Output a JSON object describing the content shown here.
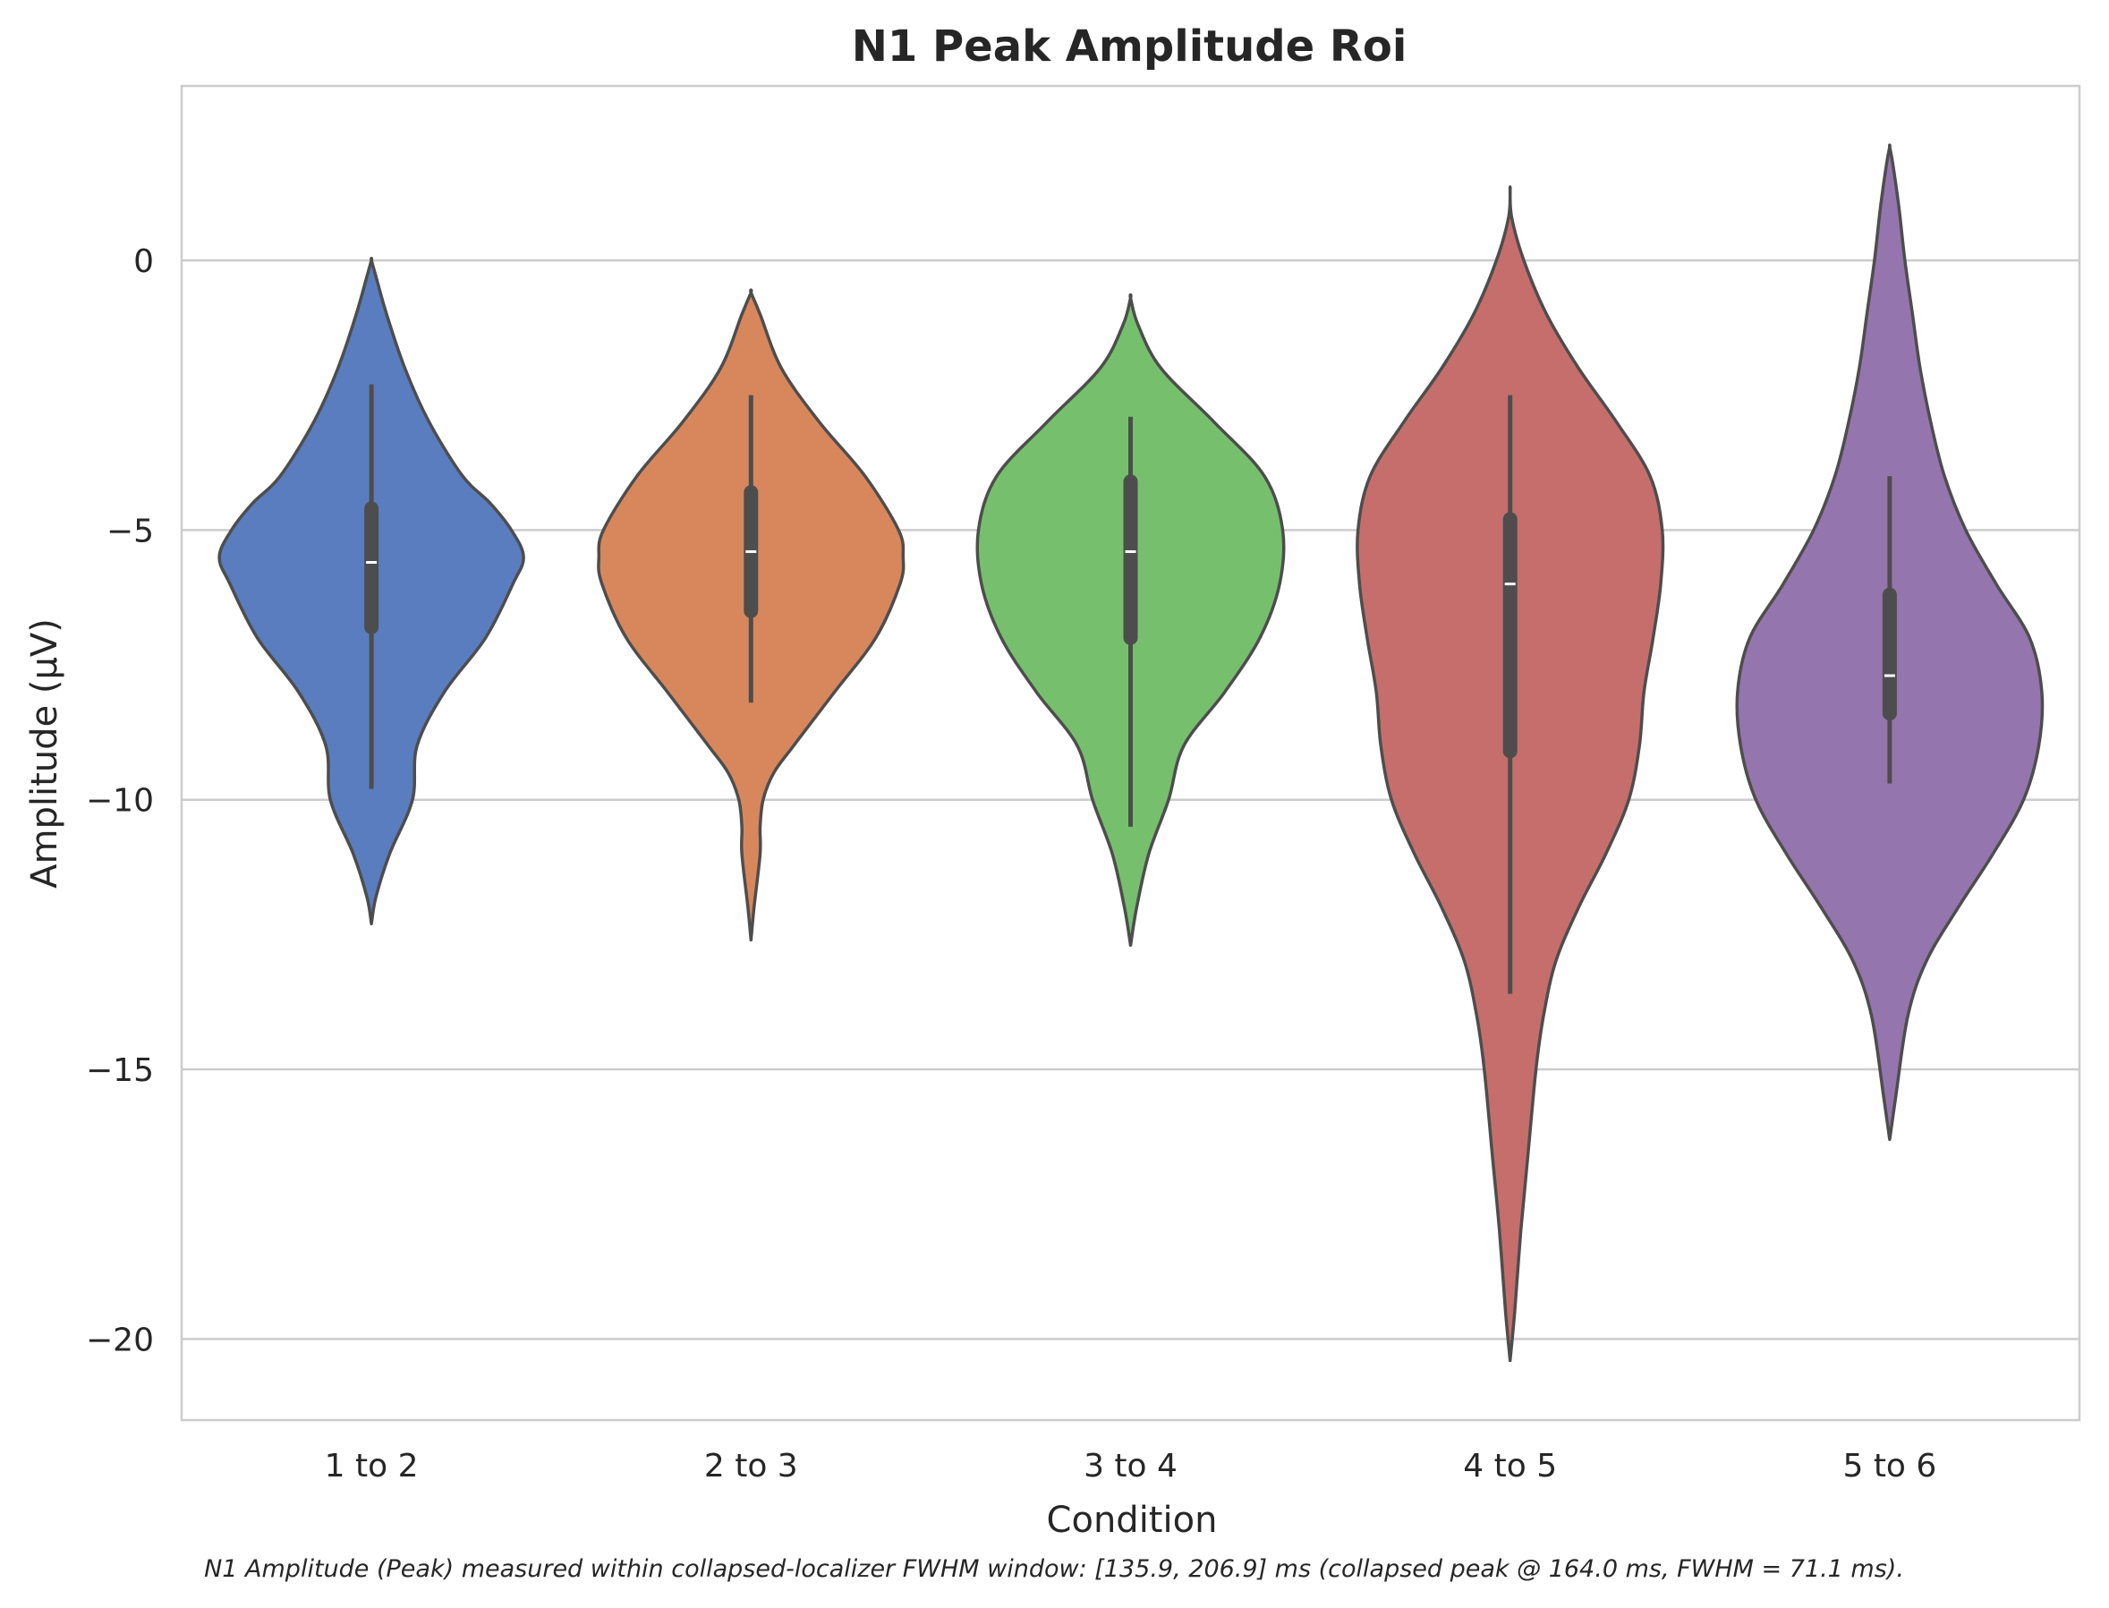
{
  "chart_data": {
    "type": "violin",
    "title": "N1 Peak Amplitude Roi",
    "xlabel": "Condition",
    "ylabel": "Amplitude (µV)",
    "caption": "N1 Amplitude (Peak) measured within collapsed-localizer FWHM window: [135.9, 206.9] ms (collapsed peak @ 164.0 ms, FWHM = 71.1 ms).",
    "ylim": [
      -21.5,
      3.2
    ],
    "yticks": [
      0,
      -5,
      -10,
      -15,
      -20
    ],
    "ytick_labels": [
      "0",
      "−5",
      "−10",
      "−15",
      "−20"
    ],
    "grid": "horizontal",
    "categories": [
      "1 to 2",
      "2 to 3",
      "3 to 4",
      "4 to 5",
      "5 to 6"
    ],
    "series": [
      {
        "category": "1 to 2",
        "color": "#5a7dbf",
        "median": -5.6,
        "q1": -6.8,
        "q3": -4.6,
        "whisker_low": -9.8,
        "whisker_high": -2.3,
        "density": [
          [
            -12.3,
            0.0
          ],
          [
            -11.8,
            0.03
          ],
          [
            -11.0,
            0.12
          ],
          [
            -10.0,
            0.27
          ],
          [
            -9.0,
            0.3
          ],
          [
            -8.0,
            0.48
          ],
          [
            -7.0,
            0.75
          ],
          [
            -6.0,
            0.93
          ],
          [
            -5.5,
            1.0
          ],
          [
            -5.0,
            0.92
          ],
          [
            -4.5,
            0.78
          ],
          [
            -4.0,
            0.6
          ],
          [
            -3.0,
            0.38
          ],
          [
            -2.0,
            0.22
          ],
          [
            -1.0,
            0.1
          ],
          [
            -0.3,
            0.03
          ],
          [
            0.0,
            0.0
          ]
        ]
      },
      {
        "category": "2 to 3",
        "color": "#d8875c",
        "median": -5.4,
        "q1": -6.5,
        "q3": -4.3,
        "whisker_low": -8.2,
        "whisker_high": -2.5,
        "density": [
          [
            -12.6,
            0.0
          ],
          [
            -12.0,
            0.02
          ],
          [
            -11.0,
            0.06
          ],
          [
            -10.5,
            0.06
          ],
          [
            -10.0,
            0.08
          ],
          [
            -9.5,
            0.15
          ],
          [
            -9.0,
            0.28
          ],
          [
            -8.0,
            0.55
          ],
          [
            -7.0,
            0.82
          ],
          [
            -6.0,
            0.98
          ],
          [
            -5.5,
            1.0
          ],
          [
            -5.0,
            0.97
          ],
          [
            -4.0,
            0.75
          ],
          [
            -3.0,
            0.45
          ],
          [
            -2.0,
            0.2
          ],
          [
            -1.0,
            0.06
          ],
          [
            -0.6,
            0.0
          ]
        ]
      },
      {
        "category": "3 to 4",
        "color": "#76c06d",
        "median": -5.4,
        "q1": -7.0,
        "q3": -4.1,
        "whisker_low": -10.5,
        "whisker_high": -2.9,
        "density": [
          [
            -12.7,
            0.0
          ],
          [
            -12.0,
            0.04
          ],
          [
            -11.0,
            0.12
          ],
          [
            -10.0,
            0.25
          ],
          [
            -9.0,
            0.35
          ],
          [
            -8.0,
            0.62
          ],
          [
            -7.0,
            0.85
          ],
          [
            -6.0,
            0.98
          ],
          [
            -5.0,
            1.0
          ],
          [
            -4.0,
            0.88
          ],
          [
            -3.0,
            0.55
          ],
          [
            -2.0,
            0.2
          ],
          [
            -1.2,
            0.05
          ],
          [
            -0.7,
            0.0
          ]
        ]
      },
      {
        "category": "4 to 5",
        "color": "#c66e6c",
        "median": -6.0,
        "q1": -9.1,
        "q3": -4.8,
        "whisker_low": -13.6,
        "whisker_high": -2.5,
        "density": [
          [
            -20.4,
            0.0
          ],
          [
            -19.5,
            0.03
          ],
          [
            -18.0,
            0.07
          ],
          [
            -16.5,
            0.12
          ],
          [
            -15.0,
            0.17
          ],
          [
            -14.0,
            0.22
          ],
          [
            -13.0,
            0.3
          ],
          [
            -12.0,
            0.45
          ],
          [
            -11.0,
            0.63
          ],
          [
            -10.0,
            0.78
          ],
          [
            -9.0,
            0.85
          ],
          [
            -8.0,
            0.88
          ],
          [
            -7.0,
            0.94
          ],
          [
            -6.0,
            0.99
          ],
          [
            -5.0,
            1.0
          ],
          [
            -4.0,
            0.92
          ],
          [
            -3.0,
            0.7
          ],
          [
            -2.0,
            0.45
          ],
          [
            -1.0,
            0.24
          ],
          [
            0.0,
            0.09
          ],
          [
            0.8,
            0.01
          ],
          [
            1.3,
            0.0
          ]
        ]
      },
      {
        "category": "5 to 6",
        "color": "#9575ad",
        "median": -7.7,
        "q1": -8.4,
        "q3": -6.2,
        "whisker_low": -9.7,
        "whisker_high": -4.0,
        "density": [
          [
            -16.3,
            0.0
          ],
          [
            -15.5,
            0.04
          ],
          [
            -14.0,
            0.12
          ],
          [
            -13.0,
            0.24
          ],
          [
            -12.0,
            0.45
          ],
          [
            -11.0,
            0.68
          ],
          [
            -10.0,
            0.88
          ],
          [
            -9.0,
            0.98
          ],
          [
            -8.0,
            1.0
          ],
          [
            -7.0,
            0.92
          ],
          [
            -6.0,
            0.7
          ],
          [
            -5.0,
            0.5
          ],
          [
            -4.0,
            0.36
          ],
          [
            -3.0,
            0.27
          ],
          [
            -2.0,
            0.2
          ],
          [
            -1.0,
            0.15
          ],
          [
            0.0,
            0.1
          ],
          [
            1.0,
            0.06
          ],
          [
            1.8,
            0.02
          ],
          [
            2.1,
            0.0
          ]
        ]
      }
    ]
  }
}
